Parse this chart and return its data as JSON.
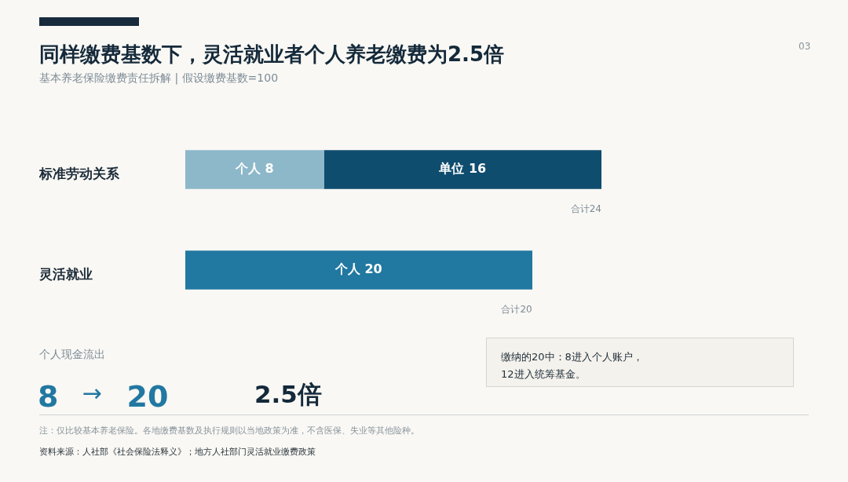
{
  "chart_data": {
    "type": "bar",
    "orientation": "horizontal",
    "stacked": true,
    "title": "同样缴费基数下，灵活就业者个人养老缴费为2.5倍",
    "subtitle": "基本养老保险缴费责任拆解 | 假设缴费基数=100",
    "categories": [
      "标准劳动关系",
      "灵活就业"
    ],
    "series": [
      {
        "colors": [
          "#8db8ca",
          "#2178a1"
        ],
        "values": [
          8,
          20
        ],
        "value_labels": [
          "个人 8",
          "个人 20"
        ]
      },
      {
        "color": "#0f4d6f",
        "values": [
          16,
          null
        ],
        "value_labels": [
          "单位 16",
          null
        ]
      }
    ],
    "totals": [
      "合计24",
      "合计20"
    ],
    "tick_labels": "y",
    "annotations": [
      "03",
      "个人现金流出",
      "8 → 20",
      "2.5倍",
      "缴纳的20中：8进入个人账户，\n12进入统筹基金。",
      "注：仅比较基本养老保险。各地缴费基数及执行规则以当地政策为准，不含医保、失业等其他险种。",
      "资料来源：人社部《社会保险法释义》；地方人社部门灵活就业缴费政策"
    ]
  }
}
